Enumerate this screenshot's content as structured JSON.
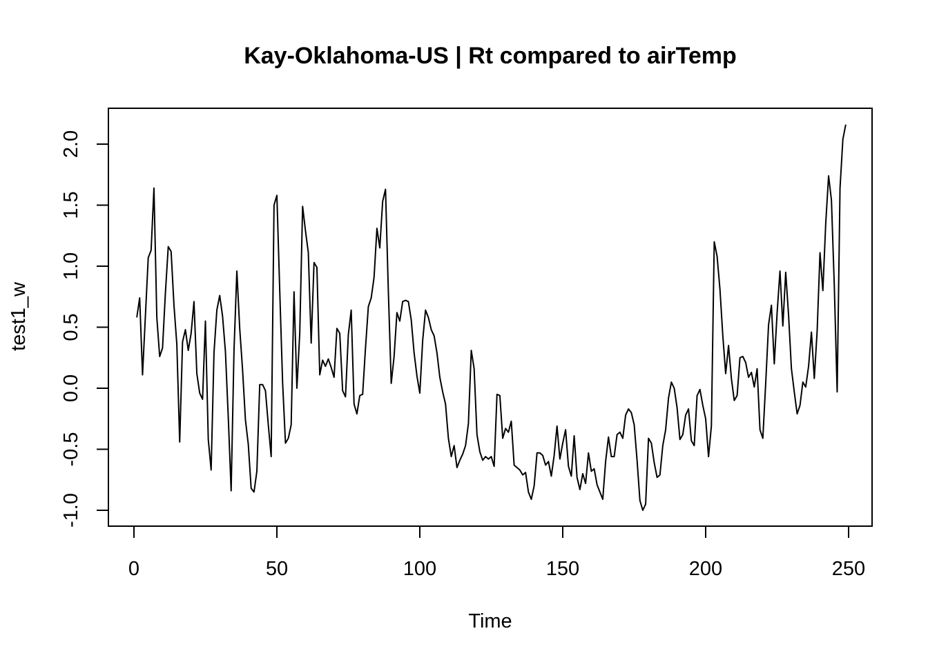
{
  "chart_data": {
    "type": "line",
    "title": "Kay-Oklahoma-US | Rt compared to airTemp",
    "xlabel": "Time",
    "ylabel": "test1_w",
    "xlim": [
      0,
      250
    ],
    "ylim": [
      -1.0,
      2.2
    ],
    "x_ticks": [
      0,
      50,
      100,
      150,
      200,
      250
    ],
    "y_ticks": [
      -1.0,
      -0.5,
      0.0,
      0.5,
      1.0,
      1.5,
      2.0
    ],
    "x_tick_labels": [
      "0",
      "50",
      "100",
      "150",
      "200",
      "250"
    ],
    "y_tick_labels": [
      "-1.0",
      "-0.5",
      "0.0",
      "0.5",
      "1.0",
      "1.5",
      "2.0"
    ],
    "grid": false,
    "series": [
      {
        "color": "#000000",
        "points": [
          [
            1,
            0.58
          ],
          [
            2,
            0.74
          ],
          [
            3,
            0.11
          ],
          [
            5,
            1.07
          ],
          [
            6,
            1.13
          ],
          [
            7,
            1.64
          ],
          [
            8,
            0.58
          ],
          [
            9,
            0.26
          ],
          [
            10,
            0.33
          ],
          [
            11,
            0.78
          ],
          [
            12,
            1.16
          ],
          [
            13,
            1.12
          ],
          [
            14,
            0.68
          ],
          [
            15,
            0.36
          ],
          [
            16,
            -0.44
          ],
          [
            17,
            0.38
          ],
          [
            18,
            0.48
          ],
          [
            19,
            0.31
          ],
          [
            20,
            0.45
          ],
          [
            21,
            0.71
          ],
          [
            22,
            0.12
          ],
          [
            23,
            -0.04
          ],
          [
            24,
            -0.09
          ],
          [
            25,
            0.55
          ],
          [
            26,
            -0.42
          ],
          [
            27,
            -0.67
          ],
          [
            28,
            0.29
          ],
          [
            29,
            0.64
          ],
          [
            30,
            0.76
          ],
          [
            31,
            0.59
          ],
          [
            32,
            0.3
          ],
          [
            33,
            -0.24
          ],
          [
            34,
            -0.84
          ],
          [
            35,
            0.31
          ],
          [
            36,
            0.96
          ],
          [
            37,
            0.49
          ],
          [
            38,
            0.15
          ],
          [
            39,
            -0.26
          ],
          [
            40,
            -0.46
          ],
          [
            41,
            -0.82
          ],
          [
            42,
            -0.85
          ],
          [
            43,
            -0.68
          ],
          [
            44,
            0.03
          ],
          [
            45,
            0.03
          ],
          [
            46,
            -0.02
          ],
          [
            47,
            -0.3
          ],
          [
            48,
            -0.56
          ],
          [
            49,
            1.5
          ],
          [
            50,
            1.58
          ],
          [
            51,
            0.8
          ],
          [
            52,
            0.05
          ],
          [
            53,
            -0.45
          ],
          [
            54,
            -0.41
          ],
          [
            55,
            -0.3
          ],
          [
            56,
            0.79
          ],
          [
            57,
            0.0
          ],
          [
            58,
            0.45
          ],
          [
            59,
            1.49
          ],
          [
            60,
            1.29
          ],
          [
            61,
            1.11
          ],
          [
            62,
            0.37
          ],
          [
            63,
            1.03
          ],
          [
            64,
            0.99
          ],
          [
            65,
            0.11
          ],
          [
            66,
            0.23
          ],
          [
            67,
            0.18
          ],
          [
            68,
            0.24
          ],
          [
            69,
            0.17
          ],
          [
            70,
            0.09
          ],
          [
            71,
            0.49
          ],
          [
            72,
            0.45
          ],
          [
            73,
            -0.02
          ],
          [
            74,
            -0.07
          ],
          [
            75,
            0.44
          ],
          [
            76,
            0.64
          ],
          [
            77,
            -0.13
          ],
          [
            78,
            -0.21
          ],
          [
            79,
            -0.06
          ],
          [
            80,
            -0.05
          ],
          [
            81,
            0.33
          ],
          [
            82,
            0.67
          ],
          [
            83,
            0.74
          ],
          [
            84,
            0.91
          ],
          [
            85,
            1.31
          ],
          [
            86,
            1.15
          ],
          [
            87,
            1.53
          ],
          [
            88,
            1.63
          ],
          [
            89,
            0.79
          ],
          [
            90,
            0.04
          ],
          [
            91,
            0.26
          ],
          [
            92,
            0.62
          ],
          [
            93,
            0.55
          ],
          [
            94,
            0.71
          ],
          [
            95,
            0.72
          ],
          [
            96,
            0.71
          ],
          [
            97,
            0.56
          ],
          [
            98,
            0.29
          ],
          [
            99,
            0.1
          ],
          [
            100,
            -0.04
          ],
          [
            101,
            0.39
          ],
          [
            102,
            0.64
          ],
          [
            103,
            0.58
          ],
          [
            104,
            0.48
          ],
          [
            105,
            0.43
          ],
          [
            106,
            0.29
          ],
          [
            107,
            0.09
          ],
          [
            108,
            -0.03
          ],
          [
            109,
            -0.13
          ],
          [
            110,
            -0.41
          ],
          [
            111,
            -0.56
          ],
          [
            112,
            -0.47
          ],
          [
            113,
            -0.65
          ],
          [
            114,
            -0.59
          ],
          [
            115,
            -0.54
          ],
          [
            116,
            -0.47
          ],
          [
            117,
            -0.29
          ],
          [
            118,
            0.31
          ],
          [
            119,
            0.16
          ],
          [
            120,
            -0.38
          ],
          [
            121,
            -0.52
          ],
          [
            122,
            -0.59
          ],
          [
            123,
            -0.56
          ],
          [
            124,
            -0.58
          ],
          [
            125,
            -0.56
          ],
          [
            126,
            -0.64
          ],
          [
            127,
            -0.05
          ],
          [
            128,
            -0.06
          ],
          [
            129,
            -0.41
          ],
          [
            130,
            -0.33
          ],
          [
            131,
            -0.36
          ],
          [
            132,
            -0.27
          ],
          [
            133,
            -0.63
          ],
          [
            134,
            -0.65
          ],
          [
            135,
            -0.67
          ],
          [
            136,
            -0.71
          ],
          [
            137,
            -0.69
          ],
          [
            138,
            -0.85
          ],
          [
            139,
            -0.91
          ],
          [
            140,
            -0.8
          ],
          [
            141,
            -0.53
          ],
          [
            142,
            -0.53
          ],
          [
            143,
            -0.55
          ],
          [
            144,
            -0.63
          ],
          [
            145,
            -0.6
          ],
          [
            146,
            -0.72
          ],
          [
            147,
            -0.55
          ],
          [
            148,
            -0.31
          ],
          [
            149,
            -0.58
          ],
          [
            150,
            -0.45
          ],
          [
            151,
            -0.34
          ],
          [
            152,
            -0.64
          ],
          [
            153,
            -0.72
          ],
          [
            154,
            -0.39
          ],
          [
            155,
            -0.73
          ],
          [
            156,
            -0.83
          ],
          [
            157,
            -0.7
          ],
          [
            158,
            -0.78
          ],
          [
            159,
            -0.53
          ],
          [
            160,
            -0.68
          ],
          [
            161,
            -0.66
          ],
          [
            162,
            -0.79
          ],
          [
            163,
            -0.85
          ],
          [
            164,
            -0.91
          ],
          [
            165,
            -0.6
          ],
          [
            166,
            -0.4
          ],
          [
            167,
            -0.56
          ],
          [
            168,
            -0.56
          ],
          [
            169,
            -0.38
          ],
          [
            170,
            -0.36
          ],
          [
            171,
            -0.41
          ],
          [
            172,
            -0.22
          ],
          [
            173,
            -0.17
          ],
          [
            174,
            -0.2
          ],
          [
            175,
            -0.3
          ],
          [
            176,
            -0.59
          ],
          [
            177,
            -0.92
          ],
          [
            178,
            -1.0
          ],
          [
            179,
            -0.95
          ],
          [
            180,
            -0.41
          ],
          [
            181,
            -0.45
          ],
          [
            182,
            -0.61
          ],
          [
            183,
            -0.73
          ],
          [
            184,
            -0.71
          ],
          [
            185,
            -0.47
          ],
          [
            186,
            -0.34
          ],
          [
            187,
            -0.08
          ],
          [
            188,
            0.05
          ],
          [
            189,
            0.0
          ],
          [
            190,
            -0.16
          ],
          [
            191,
            -0.42
          ],
          [
            192,
            -0.38
          ],
          [
            193,
            -0.22
          ],
          [
            194,
            -0.17
          ],
          [
            195,
            -0.43
          ],
          [
            196,
            -0.47
          ],
          [
            197,
            -0.06
          ],
          [
            198,
            -0.01
          ],
          [
            199,
            -0.14
          ],
          [
            200,
            -0.25
          ],
          [
            201,
            -0.56
          ],
          [
            202,
            -0.31
          ],
          [
            203,
            1.2
          ],
          [
            204,
            1.08
          ],
          [
            205,
            0.81
          ],
          [
            206,
            0.43
          ],
          [
            207,
            0.12
          ],
          [
            208,
            0.35
          ],
          [
            209,
            0.08
          ],
          [
            210,
            -0.1
          ],
          [
            211,
            -0.06
          ],
          [
            212,
            0.25
          ],
          [
            213,
            0.26
          ],
          [
            214,
            0.21
          ],
          [
            215,
            0.09
          ],
          [
            216,
            0.13
          ],
          [
            217,
            0.01
          ],
          [
            218,
            0.16
          ],
          [
            219,
            -0.34
          ],
          [
            220,
            -0.41
          ],
          [
            221,
            0.04
          ],
          [
            222,
            0.52
          ],
          [
            223,
            0.68
          ],
          [
            224,
            0.2
          ],
          [
            225,
            0.62
          ],
          [
            226,
            0.96
          ],
          [
            227,
            0.51
          ],
          [
            228,
            0.95
          ],
          [
            229,
            0.6
          ],
          [
            230,
            0.16
          ],
          [
            231,
            -0.03
          ],
          [
            232,
            -0.21
          ],
          [
            233,
            -0.14
          ],
          [
            234,
            0.05
          ],
          [
            235,
            0.01
          ],
          [
            236,
            0.18
          ],
          [
            237,
            0.46
          ],
          [
            238,
            0.08
          ],
          [
            239,
            0.47
          ],
          [
            240,
            1.11
          ],
          [
            241,
            0.8
          ],
          [
            242,
            1.35
          ],
          [
            243,
            1.74
          ],
          [
            244,
            1.54
          ],
          [
            245,
            0.84
          ],
          [
            246,
            -0.03
          ],
          [
            247,
            1.64
          ],
          [
            248,
            2.04
          ],
          [
            249,
            2.16
          ]
        ]
      }
    ]
  }
}
